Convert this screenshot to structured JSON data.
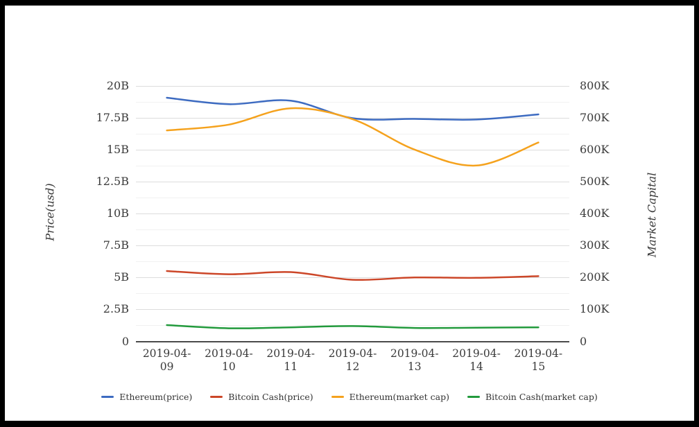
{
  "window": {
    "background_color": "#000000",
    "canvas_color": "#ffffff"
  },
  "colors": {
    "gridline_major": "#dcdcdc",
    "gridline_minor": "#f1f1f1",
    "axis_line": "#4a4a4a",
    "label_text": "#3a3a3a",
    "legend_text": "#333333"
  },
  "chart_data": {
    "type": "line",
    "smooth": true,
    "grid": true,
    "legend_position": "bottom",
    "x": [
      "2019-04-09",
      "2019-04-10",
      "2019-04-11",
      "2019-04-12",
      "2019-04-13",
      "2019-04-14",
      "2019-04-15"
    ],
    "left_axis": {
      "title": "Price(usd)",
      "min": 0,
      "max": 20,
      "unit": "B",
      "ticks": [
        "20B",
        "17.5B",
        "15B",
        "12.5B",
        "10B",
        "7.5B",
        "5B",
        "2.5B",
        "0"
      ]
    },
    "right_axis": {
      "title": "Market Capital",
      "min": 0,
      "max": 800,
      "unit": "K",
      "ticks": [
        "800K",
        "700K",
        "600K",
        "500K",
        "400K",
        "300K",
        "200K",
        "100K",
        "0"
      ]
    },
    "series": [
      {
        "name": "Ethereum(price)",
        "color": "#3d6bc1",
        "axis": "left",
        "values": [
          19.05,
          18.55,
          18.82,
          17.45,
          17.4,
          17.35,
          17.75
        ]
      },
      {
        "name": "Bitcoin Cash(price)",
        "color": "#cc4628",
        "axis": "left",
        "values": [
          5.5,
          5.25,
          5.42,
          4.82,
          5.0,
          4.97,
          5.1
        ]
      },
      {
        "name": "Ethereum(market cap)",
        "color": "#f5a21d",
        "axis": "right",
        "values": [
          660,
          678,
          729,
          695,
          600,
          550,
          622
        ]
      },
      {
        "name": "Bitcoin Cash(market cap)",
        "color": "#229a3c",
        "axis": "right",
        "values": [
          51,
          41,
          44,
          48,
          42,
          43,
          44
        ]
      }
    ]
  }
}
